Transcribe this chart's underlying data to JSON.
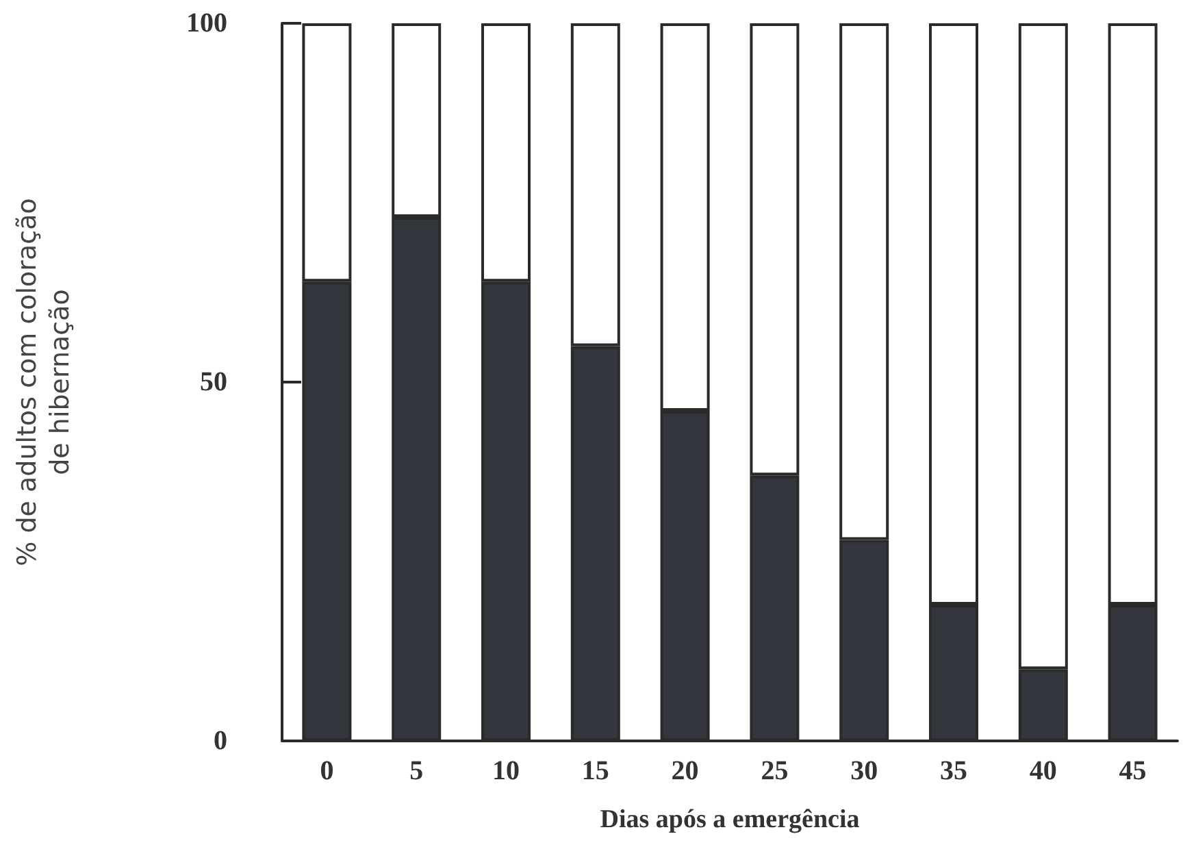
{
  "chart_data": {
    "type": "bar",
    "stacked": true,
    "xlabel": "Dias após a emergência",
    "ylabel": "% de adultos com coloração\nde hibernação",
    "categories": [
      "0",
      "5",
      "10",
      "15",
      "20",
      "25",
      "30",
      "35",
      "40",
      "45"
    ],
    "series": [
      {
        "color": "#33363d",
        "values": [
          64,
          73,
          64,
          55,
          46,
          37,
          28,
          19,
          10,
          19
        ]
      },
      {
        "color": "#ffffff",
        "values": [
          36,
          27,
          36,
          45,
          54,
          63,
          72,
          81,
          90,
          81
        ]
      }
    ],
    "ylim": [
      0,
      100
    ],
    "yticks": [
      0,
      50,
      100
    ]
  }
}
